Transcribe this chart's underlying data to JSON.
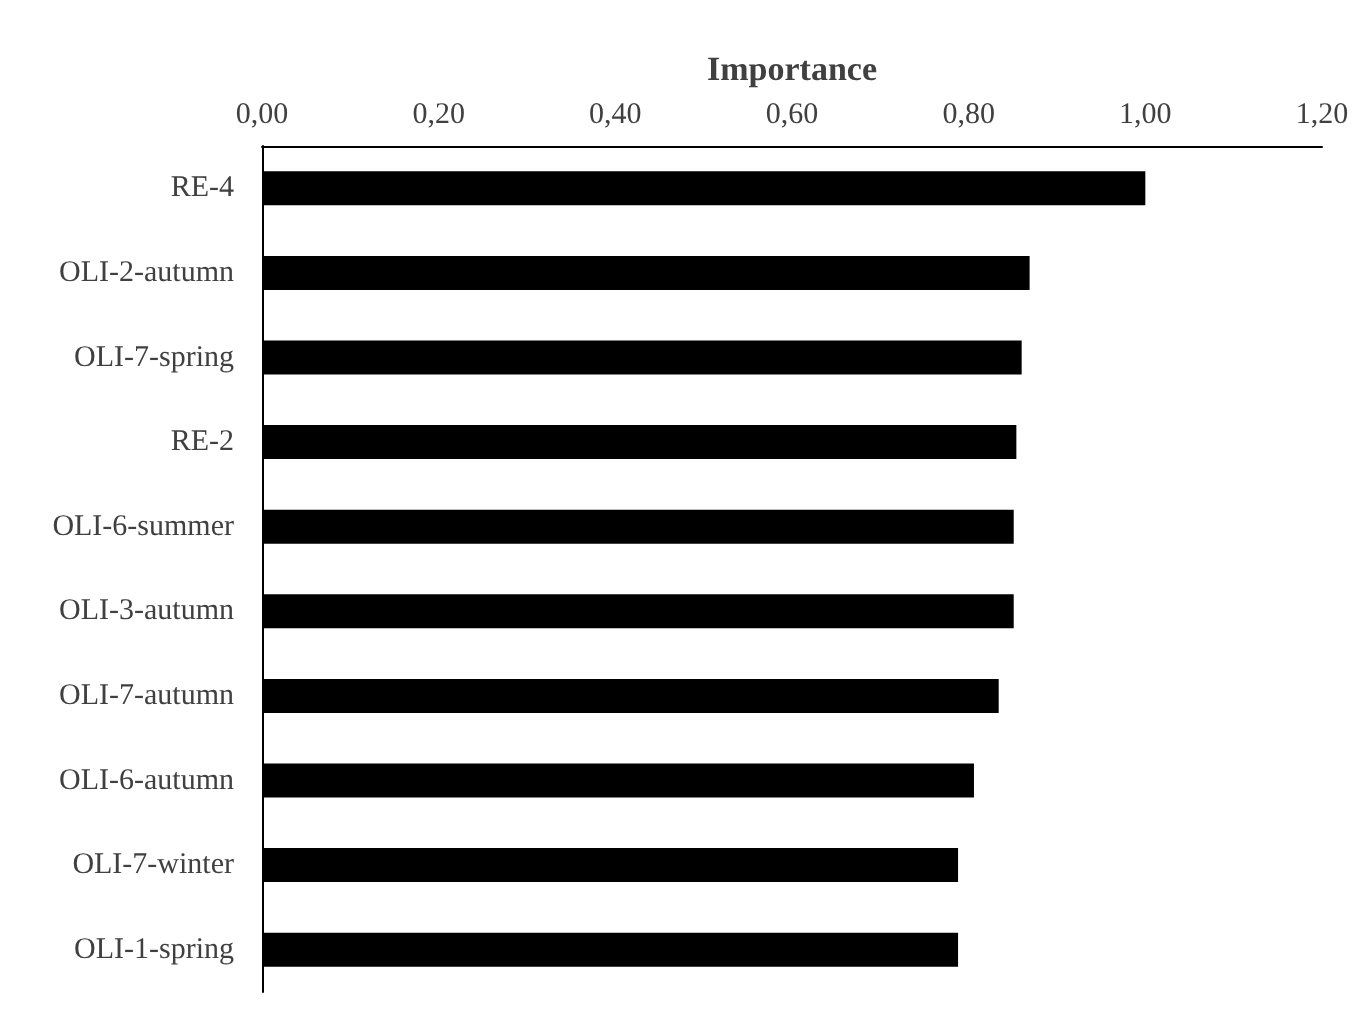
{
  "chart_data": {
    "type": "bar",
    "orientation": "horizontal",
    "xlabel": "Importance",
    "categories": [
      "RE-4",
      "OLI-2-autumn",
      "OLI-7-spring",
      "RE-2",
      "OLI-6-summer",
      "OLI-3-autumn",
      "OLI-7-autumn",
      "OLI-6-autumn",
      "OLI-7-winter",
      "OLI-1-spring"
    ],
    "values": [
      1.0,
      0.869,
      0.86,
      0.854,
      0.851,
      0.851,
      0.834,
      0.806,
      0.788,
      0.788
    ],
    "color": "#000000",
    "xlim": [
      0,
      1.2
    ],
    "xticks": [
      {
        "value": 0,
        "label": "0,00"
      },
      {
        "value": 0.2,
        "label": "0,20"
      },
      {
        "value": 0.4,
        "label": "0,40"
      },
      {
        "value": 0.6,
        "label": "0,60"
      },
      {
        "value": 0.8,
        "label": "0,80"
      },
      {
        "value": 1.0,
        "label": "1,00"
      },
      {
        "value": 1.2,
        "label": "1,20"
      }
    ],
    "grid": false
  }
}
